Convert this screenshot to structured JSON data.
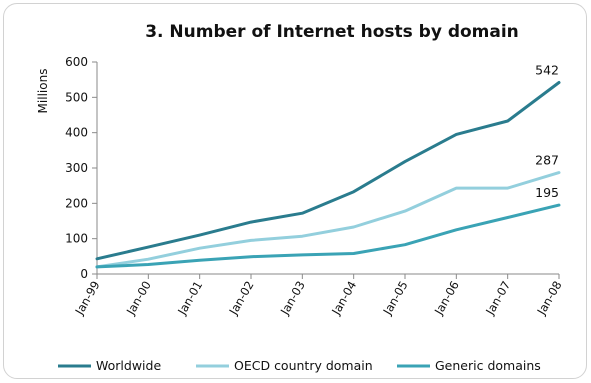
{
  "chart_data": {
    "type": "line",
    "title": "3. Number of Internet hosts by domain",
    "xlabel": "",
    "ylabel": "Millions",
    "categories": [
      "Jan-99",
      "Jan-00",
      "Jan-01",
      "Jan-02",
      "Jan-03",
      "Jan-04",
      "Jan-05",
      "Jan-06",
      "Jan-07",
      "Jan-08"
    ],
    "ylim": [
      0,
      600
    ],
    "yticks": [
      0,
      100,
      200,
      300,
      400,
      500,
      600
    ],
    "grid": false,
    "legend": "bottom",
    "series": [
      {
        "name": "Worldwide",
        "color": "#2a7c8e",
        "values": [
          43,
          76,
          110,
          147,
          172,
          233,
          318,
          395,
          433,
          542
        ],
        "end_label": "542"
      },
      {
        "name": "OECD country domain",
        "color": "#93cfdd",
        "values": [
          20,
          42,
          73,
          95,
          107,
          133,
          178,
          243,
          243,
          287
        ],
        "end_label": "287"
      },
      {
        "name": "Generic domains",
        "color": "#3aa3b5",
        "values": [
          20,
          27,
          39,
          49,
          54,
          58,
          83,
          125,
          160,
          195
        ],
        "end_label": "195"
      }
    ]
  }
}
